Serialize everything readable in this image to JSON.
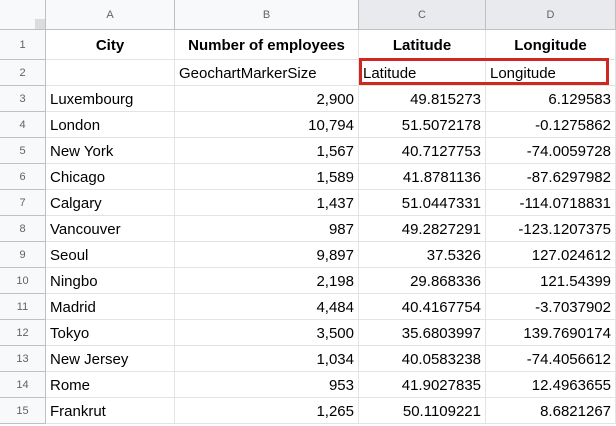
{
  "columns": [
    "A",
    "B",
    "C",
    "D"
  ],
  "headers": [
    "City",
    "Number of employees",
    "Latitude",
    "Longitude"
  ],
  "row2": [
    "",
    "GeochartMarkerSize",
    "Latitude",
    "Longitude"
  ],
  "row_numbers": [
    "1",
    "2",
    "3",
    "4",
    "5",
    "6",
    "7",
    "8",
    "9",
    "10",
    "11",
    "12",
    "13",
    "14",
    "15"
  ],
  "rows": [
    [
      "Luxembourg",
      "2,900",
      "49.815273",
      "6.129583"
    ],
    [
      "London",
      "10,794",
      "51.5072178",
      "-0.1275862"
    ],
    [
      "New York",
      "1,567",
      "40.7127753",
      "-74.0059728"
    ],
    [
      "Chicago",
      "1,589",
      "41.8781136",
      "-87.6297982"
    ],
    [
      "Calgary",
      "1,437",
      "51.0447331",
      "-114.0718831"
    ],
    [
      "Vancouver",
      "987",
      "49.2827291",
      "-123.1207375"
    ],
    [
      "Seoul",
      "9,897",
      "37.5326",
      "127.024612"
    ],
    [
      "Ningbo",
      "2,198",
      "29.868336",
      "121.54399"
    ],
    [
      "Madrid",
      "4,484",
      "40.4167754",
      "-3.7037902"
    ],
    [
      "Tokyo",
      "3,500",
      "35.6803997",
      "139.7690174"
    ],
    [
      "New Jersey",
      "1,034",
      "40.0583238",
      "-74.4056612"
    ],
    [
      "Rome",
      "953",
      "41.9027835",
      "12.4963655"
    ],
    [
      "Frankrut",
      "1,265",
      "50.1109221",
      "8.6821267"
    ]
  ],
  "selected_columns": [
    "C",
    "D"
  ],
  "colors": {
    "selection_border": "#d0281f",
    "header_bg": "#f8f9fa",
    "selected_header_bg": "#e8eaed"
  }
}
